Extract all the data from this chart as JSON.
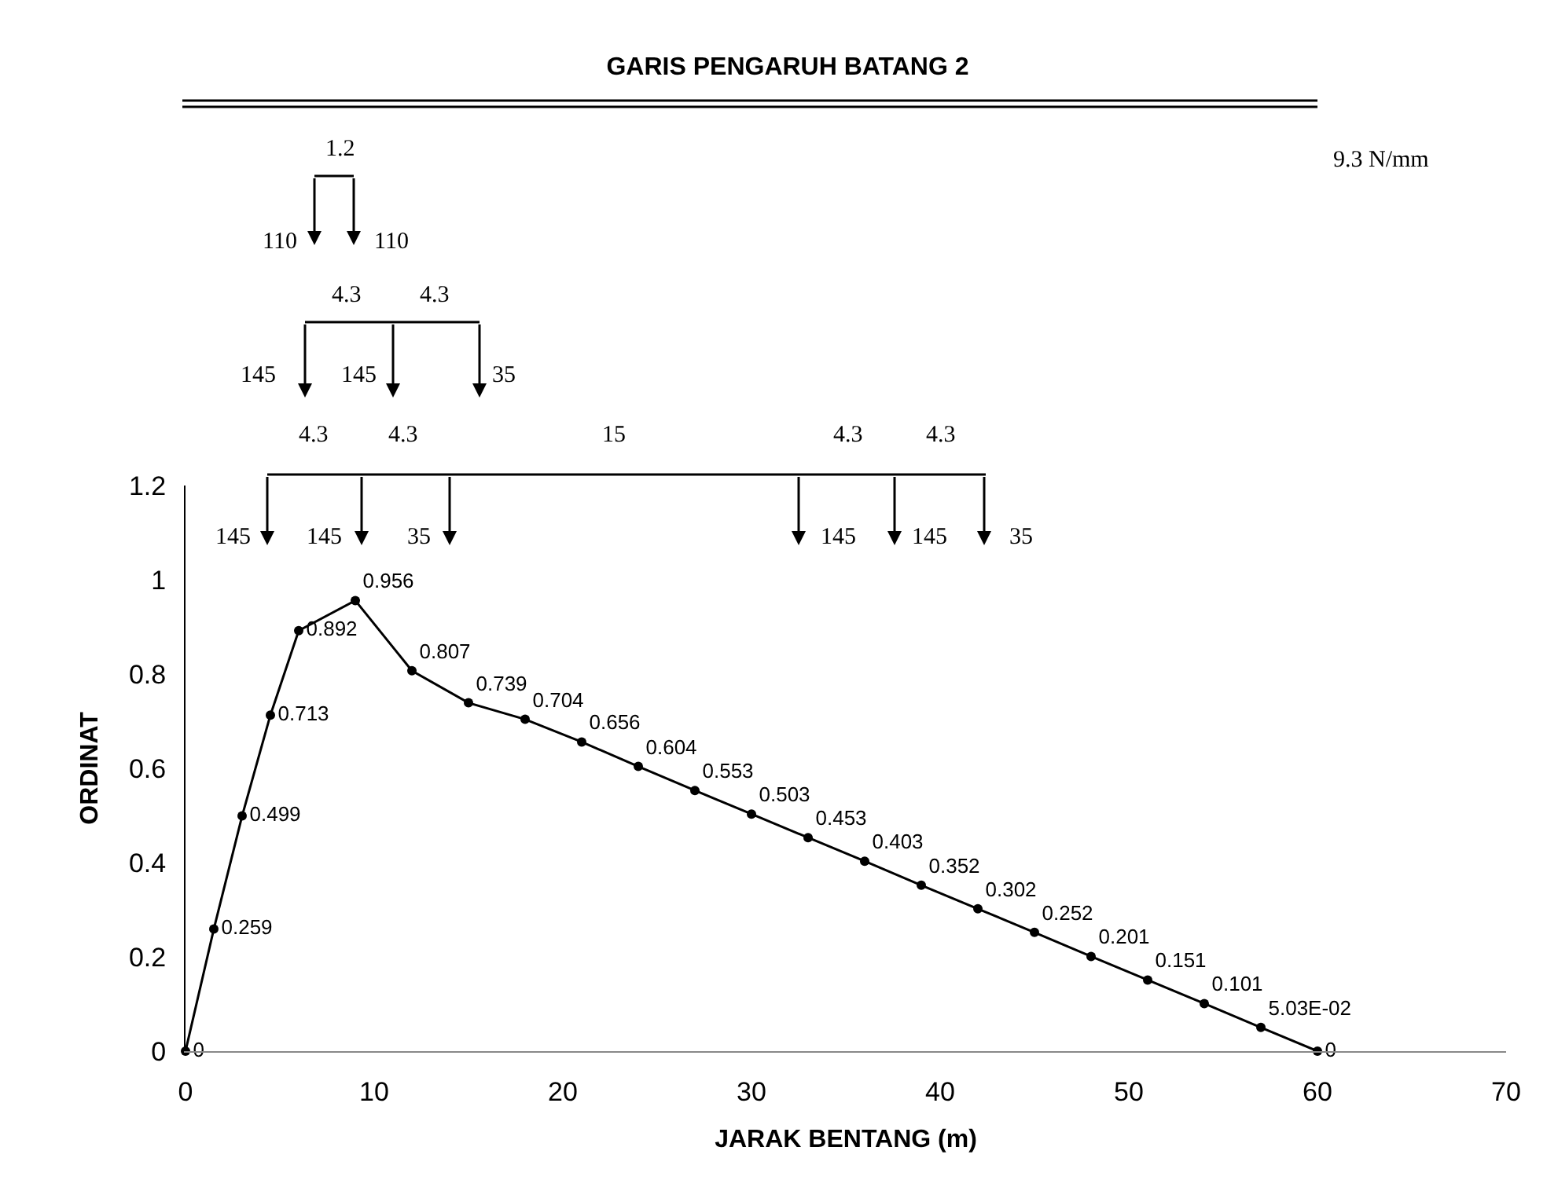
{
  "chart_data": {
    "type": "line",
    "title": "GARIS PENGARUH BATANG 2",
    "xlabel": "JARAK BENTANG (m)",
    "ylabel": "ORDINAT",
    "x": [
      0,
      1.5,
      3,
      4.5,
      6,
      9,
      12,
      15,
      18,
      21,
      24,
      27,
      30,
      33,
      36,
      39,
      42,
      45,
      48,
      51,
      54,
      57,
      60
    ],
    "series": [
      {
        "color": "#000000",
        "values": [
          0,
          0.259,
          0.499,
          0.713,
          0.892,
          0.956,
          0.807,
          0.739,
          0.704,
          0.656,
          0.604,
          0.553,
          0.503,
          0.453,
          0.403,
          0.352,
          0.302,
          0.252,
          0.201,
          0.151,
          0.101,
          0.0503,
          0
        ],
        "value_labels": [
          "0",
          "0.259",
          "0.499",
          "0.713",
          "0.892",
          "0.956",
          "0.807",
          "0.739",
          "0.704",
          "0.656",
          "0.604",
          "0.553",
          "0.503",
          "0.453",
          "0.403",
          "0.352",
          "0.302",
          "0.252",
          "0.201",
          "0.151",
          "0.101",
          "5.03E-02",
          "0"
        ]
      }
    ],
    "xlim": [
      0,
      70
    ],
    "xticks": [
      0,
      10,
      20,
      30,
      40,
      50,
      60,
      70
    ],
    "ylim": [
      0,
      1.2
    ],
    "yticks": [
      0,
      0.2,
      0.4,
      0.6,
      0.8,
      1,
      1.2
    ],
    "marker": "circle",
    "line_style": "solid",
    "annotations": [
      "9.3 N/mm",
      "1.2",
      "110",
      "110",
      "4.3",
      "4.3",
      "145",
      "145",
      "35",
      "4.3",
      "4.3",
      "15",
      "4.3",
      "4.3",
      "145",
      "145",
      "35",
      "145",
      "145",
      "35"
    ]
  }
}
